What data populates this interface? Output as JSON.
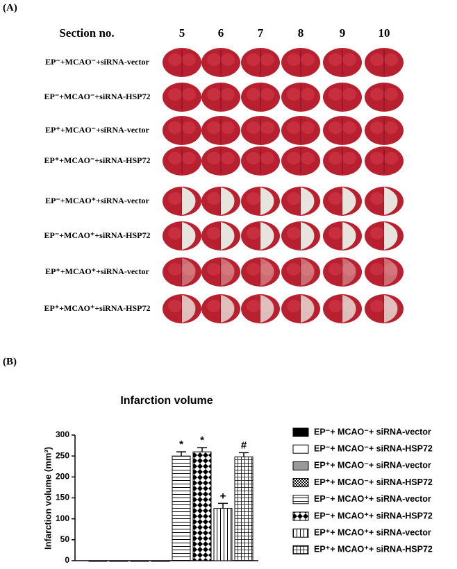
{
  "panel_a": {
    "label": "(A)",
    "header": "Section no.",
    "sections": [
      "5",
      "6",
      "7",
      "8",
      "9",
      "10"
    ],
    "rows": [
      "EP⁻+MCAO⁻+siRNA-vector",
      "EP⁻+MCAO⁻+siRNA-HSP72",
      "EP⁺+MCAO⁻+siRNA-vector",
      "EP⁺+MCAO⁻+siRNA-HSP72",
      "EP⁻+MCAO⁺+siRNA-vector",
      "EP⁻+MCAO⁺+siRNA-HSP72",
      "EP⁺+MCAO⁺+siRNA-vector",
      "EP⁺+MCAO⁺+siRNA-HSP72"
    ]
  },
  "chart_data": {
    "type": "bar",
    "panel_label": "(B)",
    "title": "Infarction volume",
    "y_label": "Infarction volume (mm³)",
    "ylim": [
      0,
      300
    ],
    "yticks": [
      0,
      50,
      100,
      150,
      200,
      250,
      300
    ],
    "series": [
      {
        "name": "EP⁻+ MCAO⁻+ siRNA-vector",
        "color": "#000000",
        "pattern": "solid",
        "values": [
          0
        ]
      },
      {
        "name": "EP⁻+ MCAO⁻+ siRNA-HSP72",
        "color": "#ffffff",
        "pattern": "solid",
        "values": [
          0
        ]
      },
      {
        "name": "EP⁺+ MCAO⁻+ siRNA-vector",
        "color": "#999999",
        "pattern": "solid",
        "values": [
          0
        ]
      },
      {
        "name": "EP⁺+ MCAO⁻+ siRNA-HSP72",
        "color": "#ffffff",
        "pattern": "checker-small",
        "values": [
          0
        ]
      },
      {
        "name": "EP⁻+ MCAO⁺+ siRNA-vector",
        "color": "#ffffff",
        "pattern": "hlines",
        "values": [
          250
        ],
        "errors": [
          10
        ],
        "annotation": "*"
      },
      {
        "name": "EP⁻+ MCAO⁺+ siRNA-HSP72",
        "color": "#ffffff",
        "pattern": "checker",
        "values": [
          260
        ],
        "errors": [
          10
        ],
        "annotation": "*"
      },
      {
        "name": "EP⁺+ MCAO⁺+ siRNA-vector",
        "color": "#ffffff",
        "pattern": "vlines",
        "values": [
          125
        ],
        "errors": [
          12
        ],
        "annotation": "+"
      },
      {
        "name": "EP⁺+ MCAO⁺+ siRNA-HSP72",
        "color": "#ffffff",
        "pattern": "grid",
        "values": [
          248
        ],
        "errors": [
          10
        ],
        "annotation": "#"
      }
    ]
  }
}
